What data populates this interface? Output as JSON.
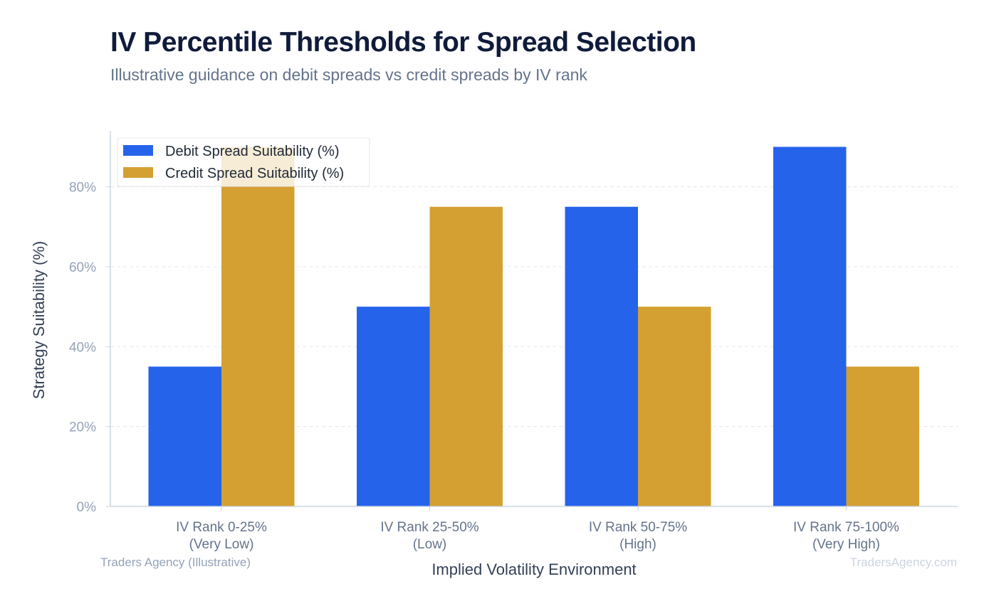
{
  "header": {
    "title": "IV Percentile Thresholds for Spread Selection",
    "subtitle": "Illustrative guidance on debit spreads vs credit spreads by IV rank"
  },
  "footer": {
    "source_label": "Traders Agency (Illustrative)",
    "watermark": "TradersAgency.com"
  },
  "colors": {
    "debit": "#2563eb",
    "credit": "#d4a032",
    "grid": "#e5e7eb",
    "axis": "#cbd5e1"
  },
  "chart_data": {
    "type": "bar",
    "xlabel": "Implied Volatility Environment",
    "ylabel": "Strategy Suitability (%)",
    "ylim": [
      0,
      94
    ],
    "yticks": [
      0,
      20,
      40,
      60,
      80
    ],
    "ytick_labels": [
      "0%",
      "20%",
      "40%",
      "60%",
      "80%"
    ],
    "grid": true,
    "legend_position": "top-left",
    "categories": [
      [
        "IV Rank 0-25%",
        "(Very Low)"
      ],
      [
        "IV Rank 25-50%",
        "(Low)"
      ],
      [
        "IV Rank 50-75%",
        "(High)"
      ],
      [
        "IV Rank 75-100%",
        "(Very High)"
      ]
    ],
    "series": [
      {
        "name": "Debit Spread Suitability (%)",
        "values": [
          35,
          50,
          75,
          90
        ]
      },
      {
        "name": "Credit Spread Suitability (%)",
        "values": [
          90,
          75,
          50,
          35
        ]
      }
    ]
  }
}
